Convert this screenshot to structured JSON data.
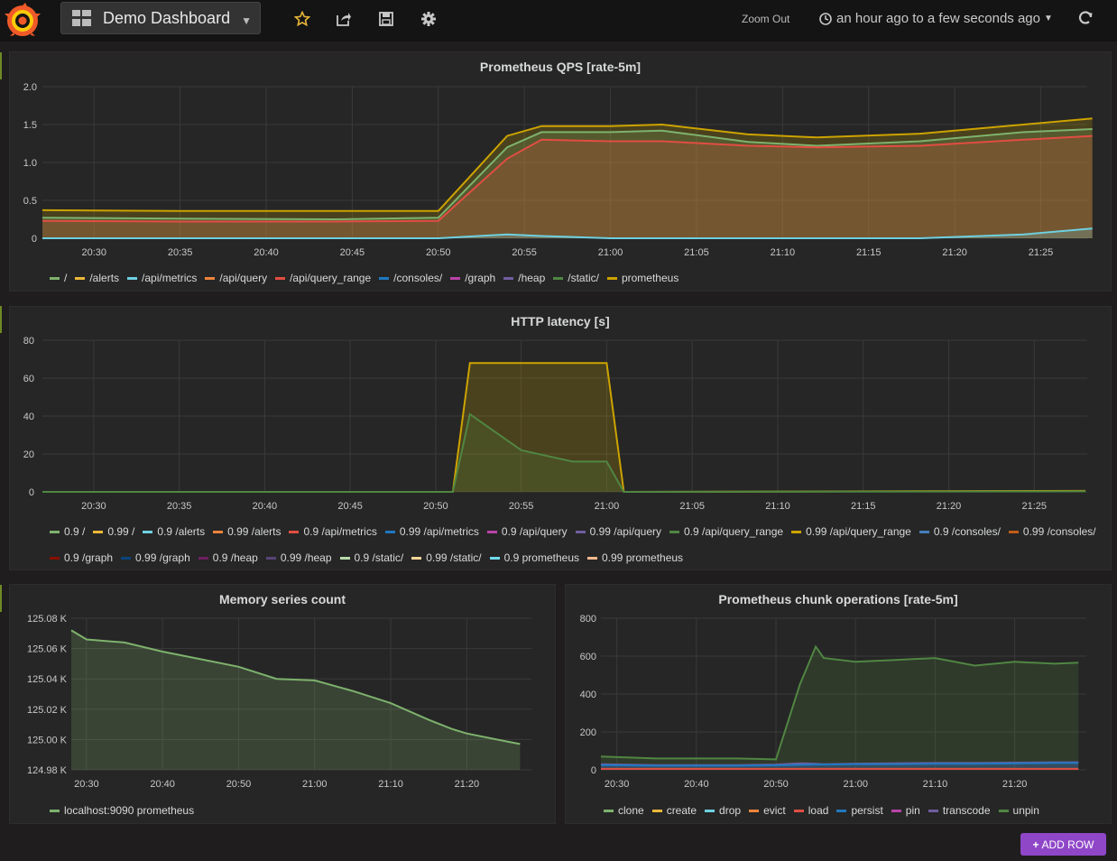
{
  "navbar": {
    "dashboard_title": "Demo Dashboard",
    "zoom_out_label": "Zoom Out",
    "time_range_label": "an hour ago to a few seconds ago",
    "icons": [
      "grafana-logo-icon",
      "dashboard-grid-icon",
      "star-icon",
      "share-icon",
      "save-icon",
      "gear-icon",
      "clock-icon",
      "refresh-icon"
    ]
  },
  "panels": {
    "qps": {
      "title": "Prometheus QPS [rate-5m]",
      "legend": [
        {
          "label": "/",
          "color": "#7eb26d"
        },
        {
          "label": "/alerts",
          "color": "#eab839"
        },
        {
          "label": "/api/metrics",
          "color": "#6ed0e0"
        },
        {
          "label": "/api/query",
          "color": "#ef843c"
        },
        {
          "label": "/api/query_range",
          "color": "#e24d42"
        },
        {
          "label": "/consoles/",
          "color": "#1f78c1"
        },
        {
          "label": "/graph",
          "color": "#ba43a9"
        },
        {
          "label": "/heap",
          "color": "#705da0"
        },
        {
          "label": "/static/",
          "color": "#508642"
        },
        {
          "label": "prometheus",
          "color": "#cca300"
        }
      ]
    },
    "latency": {
      "title": "HTTP latency [s]",
      "legend": [
        {
          "label": "0.9 /",
          "color": "#7eb26d"
        },
        {
          "label": "0.99 /",
          "color": "#eab839"
        },
        {
          "label": "0.9 /alerts",
          "color": "#6ed0e0"
        },
        {
          "label": "0.99 /alerts",
          "color": "#ef843c"
        },
        {
          "label": "0.9 /api/metrics",
          "color": "#e24d42"
        },
        {
          "label": "0.99 /api/metrics",
          "color": "#1f78c1"
        },
        {
          "label": "0.9 /api/query",
          "color": "#ba43a9"
        },
        {
          "label": "0.99 /api/query",
          "color": "#705da0"
        },
        {
          "label": "0.9 /api/query_range",
          "color": "#508642"
        },
        {
          "label": "0.99 /api/query_range",
          "color": "#cca300"
        },
        {
          "label": "0.9 /consoles/",
          "color": "#447ebc"
        },
        {
          "label": "0.99 /consoles/",
          "color": "#c15c17"
        },
        {
          "label": "0.9 /graph",
          "color": "#890f02"
        },
        {
          "label": "0.99 /graph",
          "color": "#0a437c"
        },
        {
          "label": "0.9 /heap",
          "color": "#6d1f62"
        },
        {
          "label": "0.99 /heap",
          "color": "#584477"
        },
        {
          "label": "0.9 /static/",
          "color": "#b7dbab"
        },
        {
          "label": "0.99 /static/",
          "color": "#f4d598"
        },
        {
          "label": "0.9 prometheus",
          "color": "#70dbed"
        },
        {
          "label": "0.99 prometheus",
          "color": "#f9ba8f"
        }
      ]
    },
    "memory": {
      "title": "Memory series count",
      "legend": [
        {
          "label": "localhost:9090 prometheus",
          "color": "#7eb26d"
        }
      ]
    },
    "chunks": {
      "title": "Prometheus chunk operations [rate-5m]",
      "legend": [
        {
          "label": "clone",
          "color": "#7eb26d"
        },
        {
          "label": "create",
          "color": "#eab839"
        },
        {
          "label": "drop",
          "color": "#6ed0e0"
        },
        {
          "label": "evict",
          "color": "#ef843c"
        },
        {
          "label": "load",
          "color": "#e24d42"
        },
        {
          "label": "persist",
          "color": "#1f78c1"
        },
        {
          "label": "pin",
          "color": "#ba43a9"
        },
        {
          "label": "transcode",
          "color": "#705da0"
        },
        {
          "label": "unpin",
          "color": "#508642"
        }
      ]
    }
  },
  "add_row_label": "ADD ROW",
  "chart_data": [
    {
      "type": "area",
      "title": "Prometheus QPS [rate-5m]",
      "x_ticks": [
        "20:30",
        "20:35",
        "20:40",
        "20:45",
        "20:50",
        "20:55",
        "21:00",
        "21:05",
        "21:10",
        "21:15",
        "21:20",
        "21:25"
      ],
      "y_ticks": [
        "2.0",
        "1.5",
        "1.0",
        "0.5",
        "0"
      ],
      "ylim": [
        0,
        2.0
      ],
      "grid": true,
      "x": [
        "20:27",
        "20:35",
        "20:44",
        "20:50",
        "20:54",
        "20:56",
        "21:00",
        "21:03",
        "21:08",
        "21:12",
        "21:18",
        "21:24",
        "21:28"
      ],
      "series": [
        {
          "name": "prometheus",
          "color": "#cca300",
          "values": [
            0.37,
            0.36,
            0.36,
            0.36,
            1.35,
            1.48,
            1.48,
            1.5,
            1.37,
            1.33,
            1.38,
            1.5,
            1.58
          ]
        },
        {
          "name": "/",
          "color": "#7eb26d",
          "values": [
            0.27,
            0.26,
            0.25,
            0.27,
            1.2,
            1.4,
            1.4,
            1.42,
            1.27,
            1.22,
            1.28,
            1.4,
            1.44
          ]
        },
        {
          "name": "/api/query_range",
          "color": "#e24d42",
          "values": [
            0.23,
            0.22,
            0.22,
            0.23,
            1.05,
            1.3,
            1.28,
            1.28,
            1.22,
            1.2,
            1.22,
            1.3,
            1.35
          ]
        },
        {
          "name": "/api/metrics",
          "color": "#6ed0e0",
          "values": [
            0,
            0,
            0,
            0,
            0.05,
            0.03,
            0.0,
            0.0,
            0.0,
            0.0,
            0.0,
            0.05,
            0.13
          ]
        }
      ]
    },
    {
      "type": "area",
      "title": "HTTP latency [s]",
      "x_ticks": [
        "20:30",
        "20:35",
        "20:40",
        "20:45",
        "20:50",
        "20:55",
        "21:00",
        "21:05",
        "21:10",
        "21:15",
        "21:20",
        "21:25"
      ],
      "y_ticks": [
        "80",
        "60",
        "40",
        "20",
        "0"
      ],
      "ylim": [
        0,
        80
      ],
      "grid": true,
      "x": [
        "20:27",
        "20:51",
        "20:52",
        "20:55",
        "20:58",
        "21:00",
        "21:01",
        "21:28"
      ],
      "series": [
        {
          "name": "0.99 /api/query_range",
          "color": "#cca300",
          "values": [
            0,
            0,
            68,
            68,
            68,
            68,
            0,
            0.5
          ]
        },
        {
          "name": "0.9 /api/query_range",
          "color": "#508642",
          "values": [
            0,
            0,
            41,
            22,
            16,
            16,
            0,
            0.3
          ]
        }
      ]
    },
    {
      "type": "area",
      "title": "Memory series count",
      "x_ticks": [
        "20:30",
        "20:40",
        "20:50",
        "21:00",
        "21:10",
        "21:20"
      ],
      "y_ticks": [
        "125.08 K",
        "125.06 K",
        "125.04 K",
        "125.02 K",
        "125.00 K",
        "124.98 K"
      ],
      "ylim": [
        124.98,
        125.08
      ],
      "grid": true,
      "series": [
        {
          "name": "localhost:9090 prometheus",
          "color": "#7eb26d",
          "x": [
            "20:28",
            "20:30",
            "20:35",
            "20:40",
            "20:45",
            "20:50",
            "20:55",
            "21:00",
            "21:05",
            "21:10",
            "21:15",
            "21:18",
            "21:20",
            "21:25",
            "21:27"
          ],
          "values": [
            125.072,
            125.066,
            125.064,
            125.058,
            125.053,
            125.048,
            125.04,
            125.039,
            125.032,
            125.024,
            125.013,
            125.007,
            125.004,
            124.999,
            124.997
          ]
        }
      ]
    },
    {
      "type": "area",
      "title": "Prometheus chunk operations [rate-5m]",
      "x_ticks": [
        "20:30",
        "20:40",
        "20:50",
        "21:00",
        "21:10",
        "21:20"
      ],
      "y_ticks": [
        "800",
        "600",
        "400",
        "200",
        "0"
      ],
      "ylim": [
        0,
        800
      ],
      "grid": true,
      "x": [
        "20:28",
        "20:35",
        "20:45",
        "20:50",
        "20:53",
        "20:55",
        "20:56",
        "21:00",
        "21:05",
        "21:10",
        "21:15",
        "21:20",
        "21:25",
        "21:28"
      ],
      "series": [
        {
          "name": "unpin",
          "color": "#508642",
          "values": [
            70,
            60,
            60,
            55,
            450,
            650,
            590,
            570,
            580,
            590,
            550,
            570,
            560,
            565
          ]
        },
        {
          "name": "transcode",
          "color": "#705da0",
          "values": [
            30,
            25,
            25,
            28,
            35,
            32,
            30,
            33,
            35,
            36,
            36,
            38,
            40,
            40
          ]
        },
        {
          "name": "persist",
          "color": "#1f78c1",
          "values": [
            25,
            22,
            22,
            24,
            26,
            28,
            28,
            30,
            30,
            32,
            32,
            34,
            36,
            36
          ]
        },
        {
          "name": "load",
          "color": "#e24d42",
          "values": [
            5,
            5,
            5,
            5,
            5,
            5,
            5,
            5,
            5,
            5,
            5,
            5,
            5,
            5
          ]
        }
      ]
    }
  ]
}
